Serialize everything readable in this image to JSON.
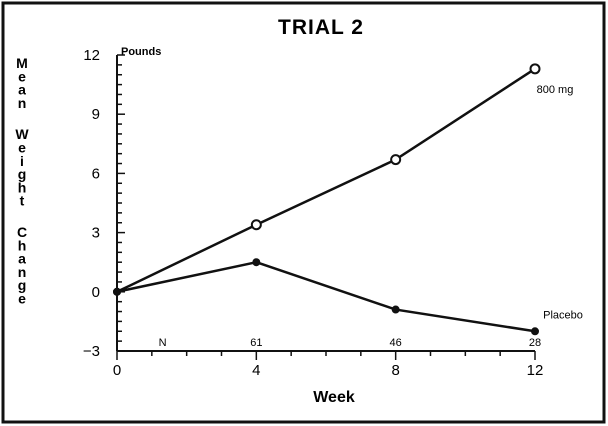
{
  "chart_data": {
    "type": "line",
    "title": "TRIAL 2",
    "xlabel": "Week",
    "ylabel": "Mean Weight Change",
    "y_unit_label": "Pounds",
    "x_ticks": [
      0,
      4,
      8,
      12
    ],
    "y_ticks": [
      -3,
      0,
      3,
      6,
      9,
      12
    ],
    "xlim": [
      0,
      12
    ],
    "ylim": [
      -3,
      12
    ],
    "grid": false,
    "series": [
      {
        "name": "800 mg",
        "marker": "open-circle",
        "x": [
          0,
          4,
          8,
          12
        ],
        "y": [
          0,
          3.4,
          6.7,
          11.3
        ]
      },
      {
        "name": "Placebo",
        "marker": "filled-circle",
        "x": [
          0,
          4,
          8,
          12
        ],
        "y": [
          0,
          1.5,
          -0.9,
          -2.0
        ]
      }
    ],
    "n_label": "N",
    "n_counts": [
      {
        "week": 4,
        "n": "61"
      },
      {
        "week": 8,
        "n": "46"
      },
      {
        "week": 12,
        "n": "28"
      }
    ]
  },
  "colors": {
    "line": "#111111",
    "background": "#ffffff"
  }
}
